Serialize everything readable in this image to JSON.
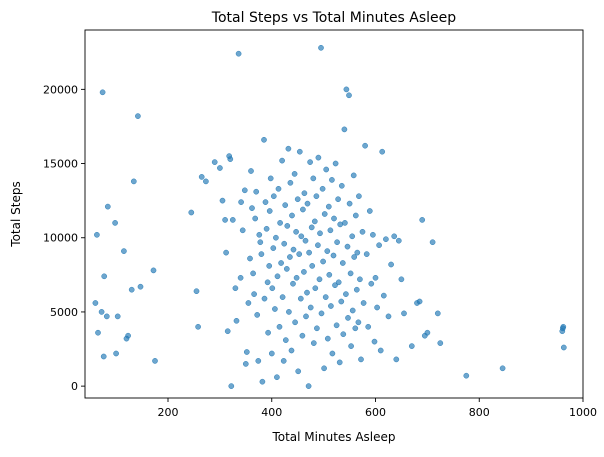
{
  "chart_data": {
    "type": "scatter",
    "title": "Total Steps vs Total Minutes Asleep",
    "xlabel": "Total Minutes Asleep",
    "ylabel": "Total Steps",
    "xlim": [
      40,
      1000
    ],
    "ylim": [
      -800,
      24000
    ],
    "xticks": [
      200,
      400,
      600,
      800,
      1000
    ],
    "xtick_labels": [
      "200",
      "400",
      "600",
      "800",
      "1000"
    ],
    "yticks": [
      0,
      5000,
      10000,
      15000,
      20000
    ],
    "ytick_labels": [
      "0",
      "5000",
      "10000",
      "15000",
      "20000"
    ],
    "grid": false,
    "legend": "none",
    "marker_color": "#1f77b4",
    "marker_alpha": 0.65,
    "points": [
      [
        60,
        5600
      ],
      [
        63,
        10200
      ],
      [
        65,
        3600
      ],
      [
        72,
        5000
      ],
      [
        74,
        19800
      ],
      [
        76,
        2000
      ],
      [
        77,
        7400
      ],
      [
        82,
        4700
      ],
      [
        84,
        12100
      ],
      [
        98,
        11000
      ],
      [
        100,
        2200
      ],
      [
        103,
        4700
      ],
      [
        115,
        9100
      ],
      [
        120,
        3200
      ],
      [
        123,
        3400
      ],
      [
        130,
        6500
      ],
      [
        134,
        13800
      ],
      [
        142,
        18200
      ],
      [
        147,
        6700
      ],
      [
        172,
        7800
      ],
      [
        175,
        1700
      ],
      [
        245,
        11700
      ],
      [
        255,
        6400
      ],
      [
        258,
        4000
      ],
      [
        265,
        14100
      ],
      [
        273,
        13800
      ],
      [
        290,
        15100
      ],
      [
        300,
        14700
      ],
      [
        305,
        12500
      ],
      [
        310,
        11200
      ],
      [
        312,
        9000
      ],
      [
        315,
        3700
      ],
      [
        318,
        15500
      ],
      [
        320,
        15300
      ],
      [
        322,
        0
      ],
      [
        325,
        11200
      ],
      [
        330,
        6600
      ],
      [
        332,
        4400
      ],
      [
        336,
        22400
      ],
      [
        340,
        7300
      ],
      [
        341,
        12400
      ],
      [
        344,
        10500
      ],
      [
        348,
        13200
      ],
      [
        350,
        1500
      ],
      [
        352,
        2300
      ],
      [
        355,
        5600
      ],
      [
        358,
        8600
      ],
      [
        360,
        14500
      ],
      [
        362,
        12000
      ],
      [
        364,
        7600
      ],
      [
        366,
        6200
      ],
      [
        368,
        11300
      ],
      [
        370,
        13100
      ],
      [
        372,
        4800
      ],
      [
        374,
        1700
      ],
      [
        376,
        10200
      ],
      [
        378,
        9700
      ],
      [
        380,
        8900
      ],
      [
        382,
        300
      ],
      [
        385,
        16600
      ],
      [
        386,
        5900
      ],
      [
        388,
        12400
      ],
      [
        390,
        10600
      ],
      [
        392,
        7000
      ],
      [
        393,
        3600
      ],
      [
        395,
        8100
      ],
      [
        396,
        11800
      ],
      [
        398,
        14000
      ],
      [
        400,
        2200
      ],
      [
        401,
        6600
      ],
      [
        403,
        9300
      ],
      [
        404,
        12800
      ],
      [
        406,
        5200
      ],
      [
        408,
        10000
      ],
      [
        410,
        600
      ],
      [
        411,
        7400
      ],
      [
        413,
        13300
      ],
      [
        415,
        4000
      ],
      [
        416,
        11000
      ],
      [
        418,
        8300
      ],
      [
        420,
        15200
      ],
      [
        421,
        6000
      ],
      [
        423,
        1700
      ],
      [
        424,
        9600
      ],
      [
        426,
        12200
      ],
      [
        427,
        3100
      ],
      [
        429,
        7900
      ],
      [
        430,
        10800
      ],
      [
        432,
        16000
      ],
      [
        433,
        5000
      ],
      [
        435,
        8700
      ],
      [
        436,
        13700
      ],
      [
        438,
        2400
      ],
      [
        439,
        11500
      ],
      [
        441,
        6900
      ],
      [
        442,
        9200
      ],
      [
        444,
        14300
      ],
      [
        445,
        4300
      ],
      [
        447,
        10400
      ],
      [
        448,
        7300
      ],
      [
        450,
        12600
      ],
      [
        451,
        1000
      ],
      [
        453,
        8900
      ],
      [
        454,
        15800
      ],
      [
        456,
        5900
      ],
      [
        457,
        10100
      ],
      [
        459,
        3400
      ],
      [
        460,
        11900
      ],
      [
        462,
        7700
      ],
      [
        463,
        13000
      ],
      [
        465,
        9800
      ],
      [
        466,
        4700
      ],
      [
        468,
        6300
      ],
      [
        469,
        12300
      ],
      [
        471,
        0
      ],
      [
        472,
        9000
      ],
      [
        474,
        15100
      ],
      [
        475,
        5300
      ],
      [
        477,
        10700
      ],
      [
        478,
        8100
      ],
      [
        480,
        14000
      ],
      [
        481,
        2900
      ],
      [
        483,
        11100
      ],
      [
        484,
        6600
      ],
      [
        486,
        12800
      ],
      [
        487,
        3900
      ],
      [
        489,
        9500
      ],
      [
        490,
        15400
      ],
      [
        492,
        7200
      ],
      [
        493,
        10300
      ],
      [
        495,
        22800
      ],
      [
        496,
        4900
      ],
      [
        498,
        13300
      ],
      [
        499,
        8400
      ],
      [
        501,
        1200
      ],
      [
        502,
        11600
      ],
      [
        504,
        6000
      ],
      [
        505,
        14600
      ],
      [
        507,
        9100
      ],
      [
        508,
        3200
      ],
      [
        510,
        12100
      ],
      [
        511,
        7500
      ],
      [
        513,
        10500
      ],
      [
        514,
        5400
      ],
      [
        516,
        13900
      ],
      [
        517,
        2200
      ],
      [
        519,
        8800
      ],
      [
        520,
        11300
      ],
      [
        522,
        6800
      ],
      [
        523,
        15000
      ],
      [
        525,
        4100
      ],
      [
        526,
        9700
      ],
      [
        528,
        12600
      ],
      [
        529,
        7000
      ],
      [
        531,
        1600
      ],
      [
        532,
        10900
      ],
      [
        534,
        5700
      ],
      [
        535,
        13500
      ],
      [
        537,
        8300
      ],
      [
        538,
        3500
      ],
      [
        540,
        17300
      ],
      [
        541,
        11000
      ],
      [
        543,
        6200
      ],
      [
        544,
        20000
      ],
      [
        546,
        9400
      ],
      [
        547,
        4600
      ],
      [
        549,
        19600
      ],
      [
        550,
        12300
      ],
      [
        552,
        7600
      ],
      [
        553,
        2700
      ],
      [
        555,
        10100
      ],
      [
        556,
        5100
      ],
      [
        558,
        14200
      ],
      [
        559,
        8700
      ],
      [
        561,
        3900
      ],
      [
        562,
        11500
      ],
      [
        564,
        6500
      ],
      [
        565,
        9000
      ],
      [
        567,
        4300
      ],
      [
        568,
        12800
      ],
      [
        570,
        7200
      ],
      [
        572,
        1800
      ],
      [
        575,
        10400
      ],
      [
        577,
        5600
      ],
      [
        580,
        16200
      ],
      [
        583,
        8900
      ],
      [
        586,
        4000
      ],
      [
        589,
        11800
      ],
      [
        592,
        6900
      ],
      [
        595,
        10200
      ],
      [
        598,
        3000
      ],
      [
        600,
        7300
      ],
      [
        603,
        5300
      ],
      [
        607,
        9500
      ],
      [
        610,
        2400
      ],
      [
        613,
        15800
      ],
      [
        616,
        6100
      ],
      [
        620,
        9900
      ],
      [
        625,
        4700
      ],
      [
        630,
        8200
      ],
      [
        636,
        10100
      ],
      [
        640,
        1800
      ],
      [
        645,
        9800
      ],
      [
        650,
        7200
      ],
      [
        655,
        4900
      ],
      [
        670,
        2700
      ],
      [
        680,
        5600
      ],
      [
        685,
        5700
      ],
      [
        690,
        11200
      ],
      [
        695,
        3400
      ],
      [
        700,
        3600
      ],
      [
        710,
        9700
      ],
      [
        720,
        4900
      ],
      [
        725,
        2900
      ],
      [
        775,
        700
      ],
      [
        845,
        1200
      ],
      [
        960,
        3700
      ],
      [
        961,
        3900
      ],
      [
        962,
        4000
      ],
      [
        963,
        2600
      ]
    ]
  }
}
